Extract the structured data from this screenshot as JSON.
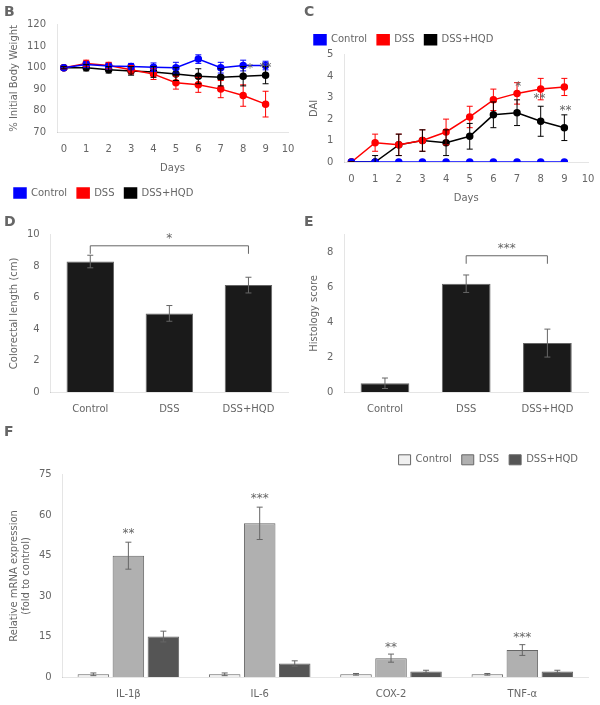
{
  "chart_data": [
    {
      "type": "line",
      "title": "B",
      "x": [
        0,
        1,
        2,
        3,
        4,
        5,
        6,
        7,
        8,
        9
      ],
      "series": [
        {
          "name": "Control",
          "color": "#0000ff",
          "marker": "circle",
          "values": [
            100,
            101.5,
            100.8,
            100.5,
            100.2,
            100.0,
            104,
            100,
            101,
            101
          ],
          "errors": [
            0.5,
            1.5,
            1.5,
            1.5,
            2.0,
            2.5,
            2.0,
            2.5,
            2.5,
            2.0
          ]
        },
        {
          "name": "DSS",
          "color": "#ff0000",
          "marker": "circle",
          "values": [
            100,
            102,
            101,
            99,
            97,
            93,
            92,
            90,
            87,
            83
          ],
          "errors": [
            0.5,
            1.5,
            1.5,
            2.0,
            2.5,
            3.0,
            3.5,
            4.0,
            5.0,
            6.0
          ]
        },
        {
          "name": "DSS+HQD",
          "color": "#000000",
          "marker": "circle",
          "values": [
            100,
            100,
            99,
            98.5,
            98,
            97,
            96,
            95.5,
            96,
            96.5
          ],
          "errors": [
            0.5,
            1.5,
            1.5,
            2.0,
            2.5,
            3.0,
            3.5,
            4.0,
            4.5,
            4.0
          ]
        }
      ],
      "xlabel": "Days",
      "ylabel": "% Initial Body Weight",
      "xlim": [
        -0.3,
        10
      ],
      "xticks": [
        0,
        1,
        2,
        3,
        4,
        5,
        6,
        7,
        8,
        9,
        10
      ],
      "ylim": [
        70,
        120
      ],
      "yticks": [
        70,
        80,
        90,
        100,
        110,
        120
      ],
      "grid": false,
      "legend": "lower left",
      "annotations": [
        {
          "text": "*",
          "x": 8.3,
          "y": 97.8
        },
        {
          "text": "**",
          "x": 9.0,
          "y": 98.5
        }
      ]
    },
    {
      "type": "line",
      "title": "C",
      "x": [
        0,
        1,
        2,
        3,
        4,
        5,
        6,
        7,
        8,
        9
      ],
      "series": [
        {
          "name": "Control",
          "color": "#0000ff",
          "marker": "circle",
          "values": [
            0,
            0,
            0,
            0,
            0,
            0,
            0,
            0,
            0,
            0
          ],
          "errors": [
            0,
            0,
            0,
            0,
            0,
            0,
            0,
            0,
            0,
            0
          ]
        },
        {
          "name": "DSS",
          "color": "#ff0000",
          "marker": "circle",
          "values": [
            0,
            0.9,
            0.8,
            1.0,
            1.4,
            2.1,
            2.9,
            3.2,
            3.4,
            3.5
          ],
          "errors": [
            0,
            0.4,
            0.5,
            0.5,
            0.6,
            0.5,
            0.5,
            0.5,
            0.5,
            0.4
          ]
        },
        {
          "name": "DSS+HQD",
          "color": "#000000",
          "marker": "circle",
          "values": [
            0,
            0.0,
            0.8,
            1.0,
            0.9,
            1.2,
            2.2,
            2.3,
            1.9,
            1.6
          ],
          "errors": [
            0,
            0.3,
            0.5,
            0.5,
            0.6,
            0.6,
            0.6,
            0.6,
            0.7,
            0.6
          ]
        }
      ],
      "xlabel": "Days",
      "ylabel": "DAI",
      "xlim": [
        -0.3,
        10
      ],
      "xticks": [
        0,
        1,
        2,
        3,
        4,
        5,
        6,
        7,
        8,
        9,
        10
      ],
      "ylim": [
        0,
        5
      ],
      "yticks": [
        0,
        1,
        2,
        3,
        4,
        5
      ],
      "grid": false,
      "legend": "upper left",
      "annotations": [
        {
          "text": "*",
          "x": 7.05,
          "y": 3.35
        },
        {
          "text": "**",
          "x": 7.95,
          "y": 2.82
        },
        {
          "text": "**",
          "x": 9.05,
          "y": 2.23
        }
      ]
    },
    {
      "type": "bar",
      "title": "D",
      "categories": [
        "Control",
        "DSS",
        "DSS+HQD"
      ],
      "values": [
        8.3,
        5.0,
        6.8
      ],
      "errors": [
        0.4,
        0.5,
        0.5
      ],
      "color": "#1a1a1a",
      "ylabel": "Colorectal length (cm)",
      "ylim": [
        0,
        10
      ],
      "yticks": [
        0,
        2,
        4,
        6,
        8,
        10
      ],
      "grid": false,
      "annotations": [
        {
          "text": "*",
          "from": "Control",
          "to": "DSS+HQD",
          "y": 9.3
        }
      ]
    },
    {
      "type": "bar",
      "title": "E",
      "categories": [
        "Control",
        "DSS",
        "DSS+HQD"
      ],
      "values": [
        0.5,
        6.2,
        2.8
      ],
      "errors": [
        0.3,
        0.5,
        0.8
      ],
      "color": "#1a1a1a",
      "ylabel": "Histology score",
      "ylim": [
        0,
        9
      ],
      "yticks": [
        0,
        2,
        4,
        6,
        8
      ],
      "grid": false,
      "annotations": [
        {
          "text": "***",
          "from": "DSS",
          "to": "DSS+HQD",
          "y": 7.8
        }
      ]
    },
    {
      "type": "bar",
      "title": "F",
      "categories": [
        "IL-1β",
        "IL-6",
        "COX-2",
        "TNF-α"
      ],
      "series": [
        {
          "name": "Control",
          "color": "#f0f0f0",
          "values": [
            1,
            1,
            1,
            1
          ],
          "errors": [
            0.5,
            0.5,
            0.3,
            0.3
          ]
        },
        {
          "name": "DSS",
          "color": "#b0b0b0",
          "values": [
            45,
            57,
            7,
            10
          ],
          "errors": [
            5,
            6,
            1.5,
            2
          ]
        },
        {
          "name": "DSS+HQD",
          "color": "#555555",
          "values": [
            15,
            5,
            2,
            2
          ],
          "errors": [
            2,
            1,
            0.5,
            0.5
          ]
        }
      ],
      "ylabel": "Relative mRNA expression\n(fold to control)",
      "ylim": [
        0,
        75
      ],
      "yticks": [
        0,
        15,
        30,
        45,
        60,
        75
      ],
      "grid": false,
      "legend": "upper right",
      "annotations": [
        {
          "text": "**",
          "x": "IL-1β",
          "y": 52
        },
        {
          "text": "***",
          "x": "IL-6",
          "y": 65
        },
        {
          "text": "**",
          "x": "COX-2",
          "y": 9.5
        },
        {
          "text": "***",
          "x": "TNF-α",
          "y": 13.5
        }
      ]
    }
  ]
}
